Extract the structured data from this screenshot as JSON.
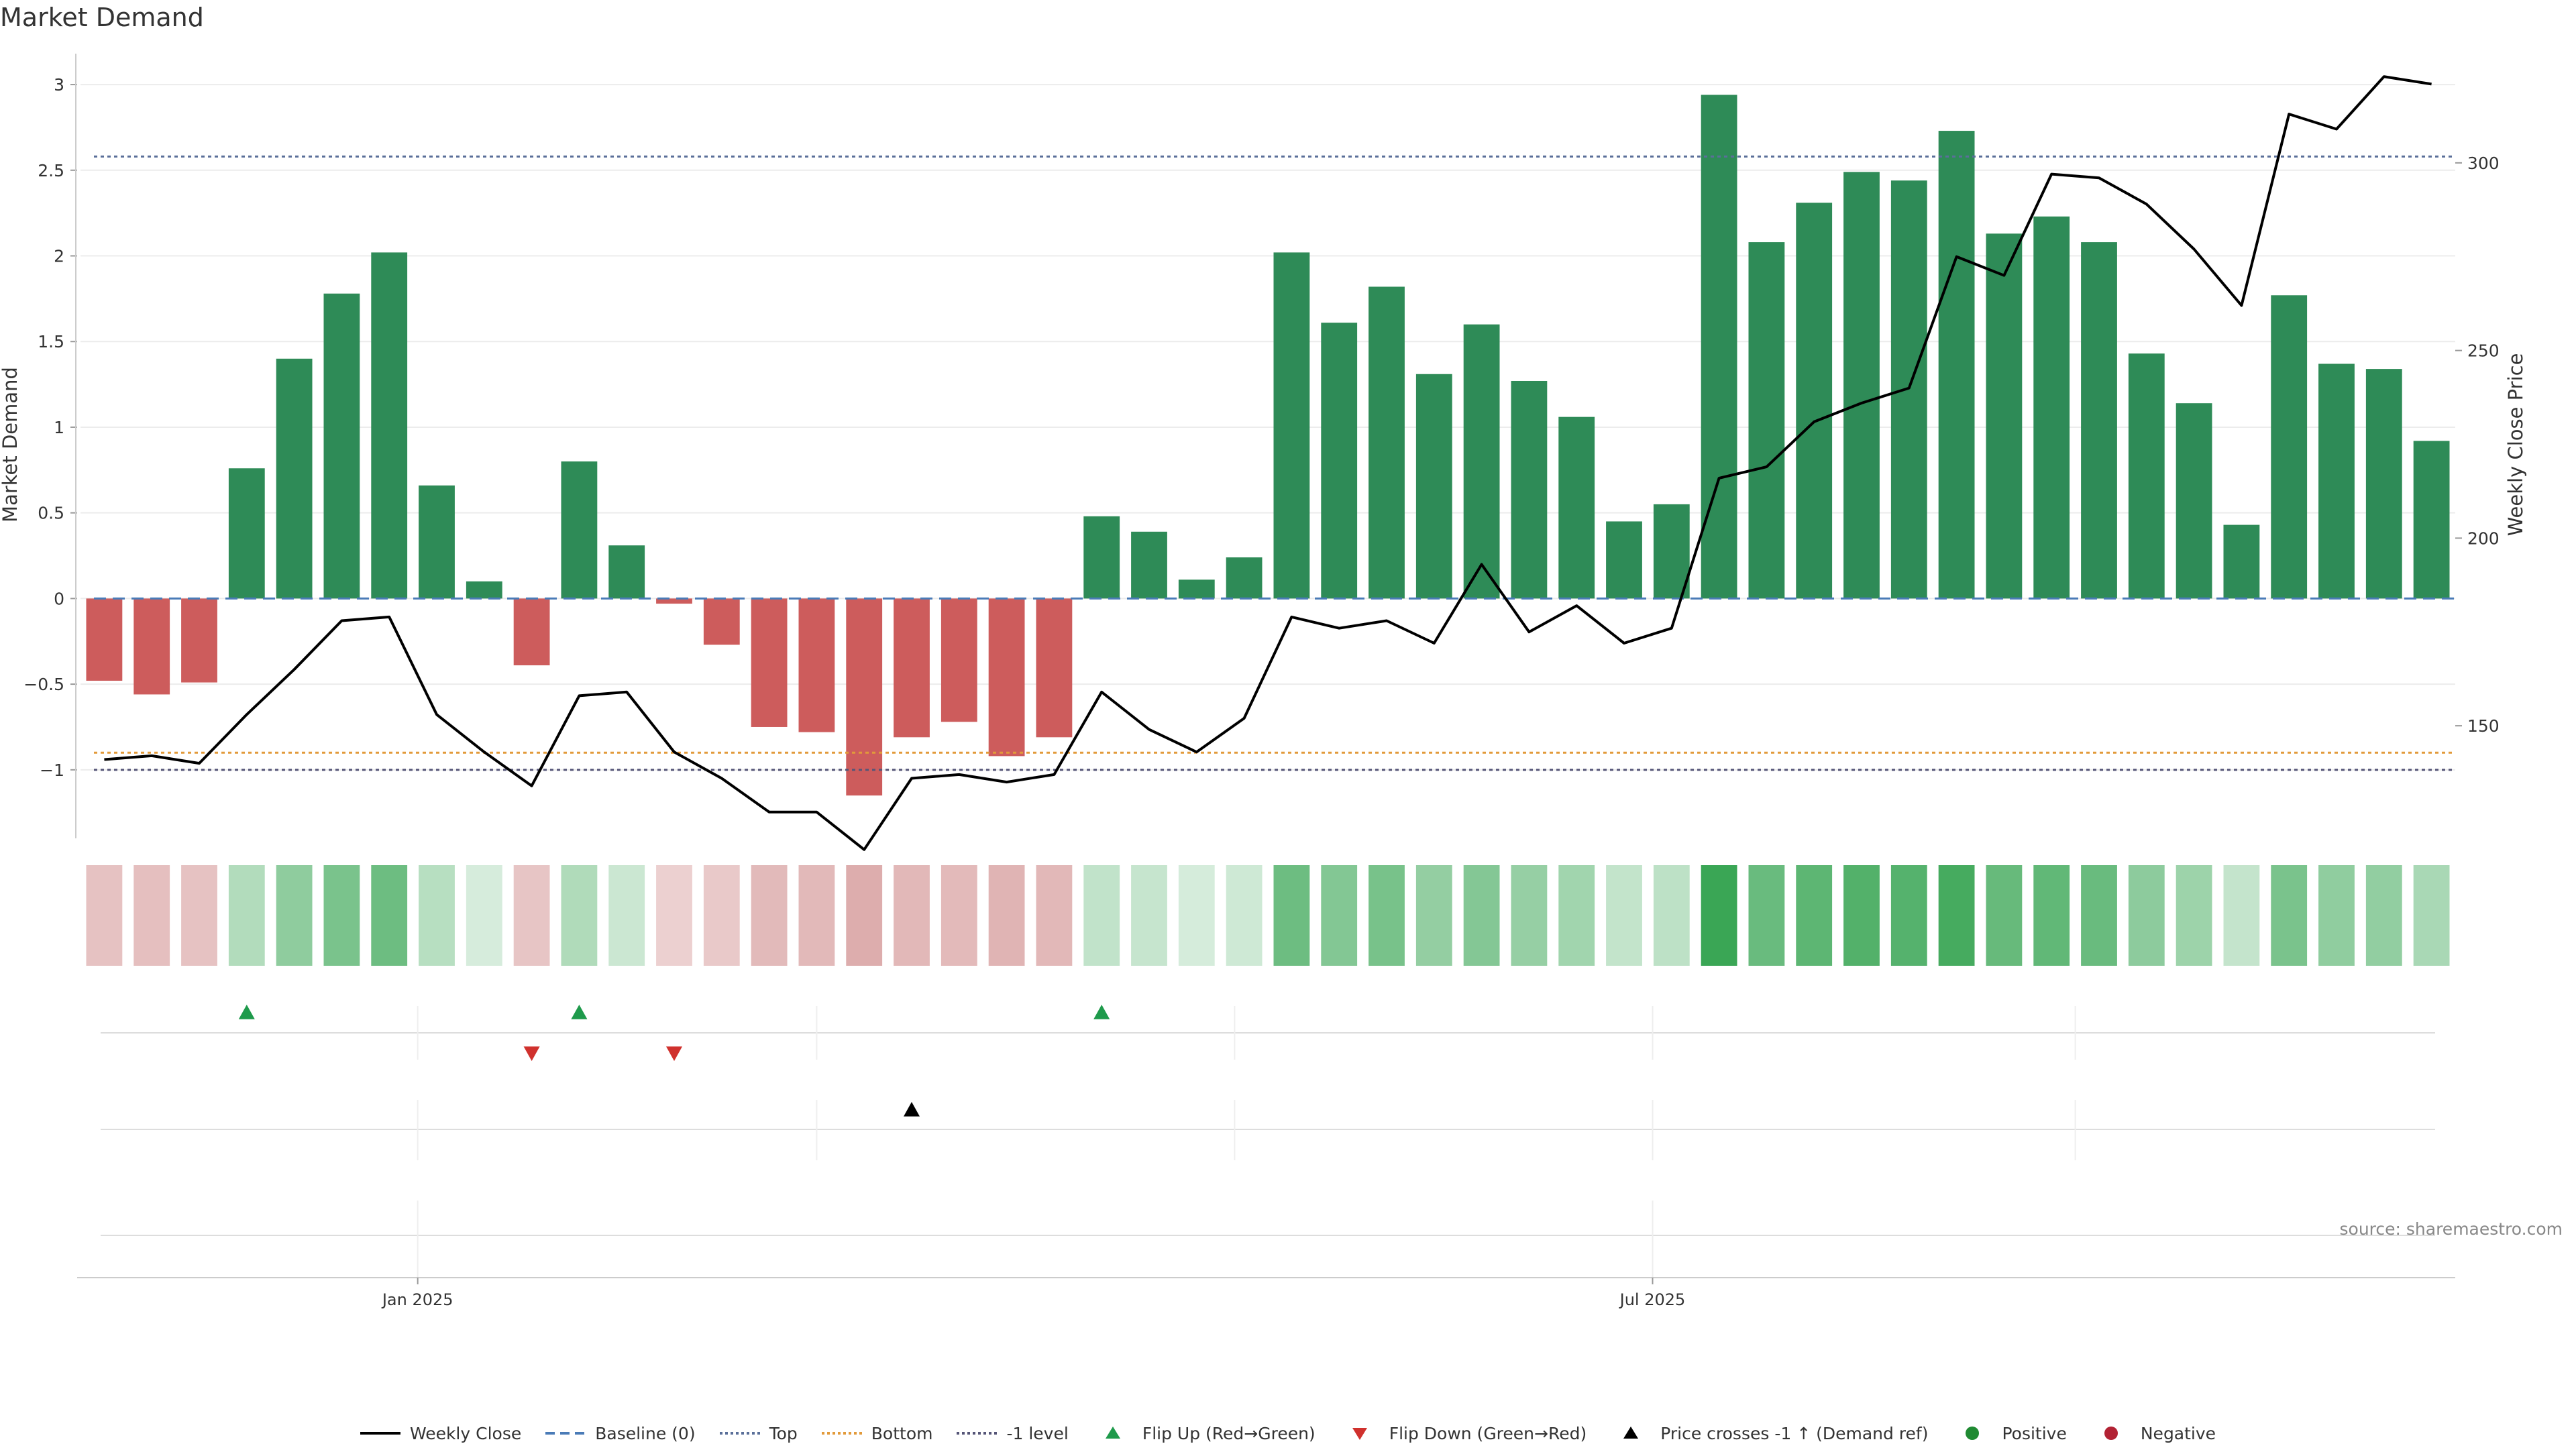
{
  "chart_data": {
    "type": "bar",
    "title": "Market Demand",
    "ylabel": "Market Demand",
    "y2label": "Weekly Close Price",
    "ylim": [
      -1.4,
      3.2
    ],
    "y2lim": [
      120,
      330
    ],
    "yticks": [
      3,
      2.5,
      2,
      1.5,
      1,
      0.5,
      0,
      -0.5,
      -1
    ],
    "ytick_labels": [
      "3",
      "2.5",
      "2",
      "1.5",
      "1",
      "0.5",
      "0",
      "−0.5",
      "−1"
    ],
    "y2ticks": [
      300,
      250,
      200,
      150
    ],
    "y2tick_labels": [
      "300",
      "250",
      "200",
      "150"
    ],
    "x_ticks": [
      {
        "label": "Jan 2025",
        "week": 6.6
      },
      {
        "label": "Jul 2025",
        "week": 32.6
      }
    ],
    "minor_grid_weeks": [
      6.6,
      15.0,
      23.8,
      32.6,
      41.5
    ],
    "demand": [
      -0.48,
      -0.56,
      -0.49,
      0.76,
      1.4,
      1.78,
      2.02,
      0.66,
      0.1,
      -0.39,
      0.8,
      0.31,
      -0.03,
      -0.27,
      -0.75,
      -0.78,
      -1.15,
      -0.81,
      -0.72,
      -0.92,
      -0.81,
      0.48,
      0.39,
      0.11,
      0.24,
      2.02,
      1.61,
      1.82,
      1.31,
      1.6,
      1.27,
      1.06,
      0.45,
      0.55,
      2.94,
      2.08,
      2.31,
      2.49,
      2.44,
      2.73,
      2.13,
      2.23,
      2.08,
      1.43,
      1.14,
      0.43,
      1.77,
      1.37,
      1.34,
      0.92
    ],
    "weekly_close": [
      141,
      142,
      140,
      153,
      165,
      178,
      179,
      153,
      143,
      134,
      158,
      159,
      143,
      136,
      127,
      127,
      117,
      136,
      137,
      135,
      137,
      159,
      149,
      143,
      152,
      179,
      176,
      178,
      172,
      193,
      175,
      182,
      172,
      176,
      216,
      219,
      231,
      236,
      240,
      275,
      270,
      297,
      296,
      289,
      277,
      262,
      313,
      309,
      323,
      321
    ],
    "reference_lines": {
      "baseline": 0,
      "top": 2.58,
      "bottom": -0.9,
      "minus_one_level": -1
    },
    "flip_up_weeks": [
      3,
      10,
      21
    ],
    "flip_down_weeks": [
      9,
      12
    ],
    "price_cross_weeks": [
      17
    ],
    "colors": {
      "positive_bar": "#2e8b57",
      "negative_bar": "#cd5c5c",
      "price_line": "#000000",
      "baseline": "#4a7bb7",
      "top": "#5a6f99",
      "bottom": "#e29a3a",
      "minus_one": "#555577",
      "flip_up": "#1e9a4b",
      "flip_down": "#d0312d",
      "cross": "#000000",
      "positive_dot": "#1f8a32",
      "negative_dot": "#b22234",
      "heat_pos": "#3aa655",
      "heat_neg": "#d9a3a3"
    },
    "legend": [
      {
        "key": "line",
        "label": "Weekly Close"
      },
      {
        "key": "baseline",
        "label": "Baseline (0)"
      },
      {
        "key": "top",
        "label": "Top"
      },
      {
        "key": "bottom",
        "label": "Bottom"
      },
      {
        "key": "minus_one",
        "label": "-1 level"
      },
      {
        "key": "flip_up",
        "label": "Flip Up (Red→Green)"
      },
      {
        "key": "flip_down",
        "label": "Flip Down (Green→Red)"
      },
      {
        "key": "cross",
        "label": "Price crosses -1 ↑ (Demand ref)"
      },
      {
        "key": "positive",
        "label": "Positive"
      },
      {
        "key": "negative",
        "label": "Negative"
      }
    ],
    "source": "source: sharemaestro.com"
  }
}
